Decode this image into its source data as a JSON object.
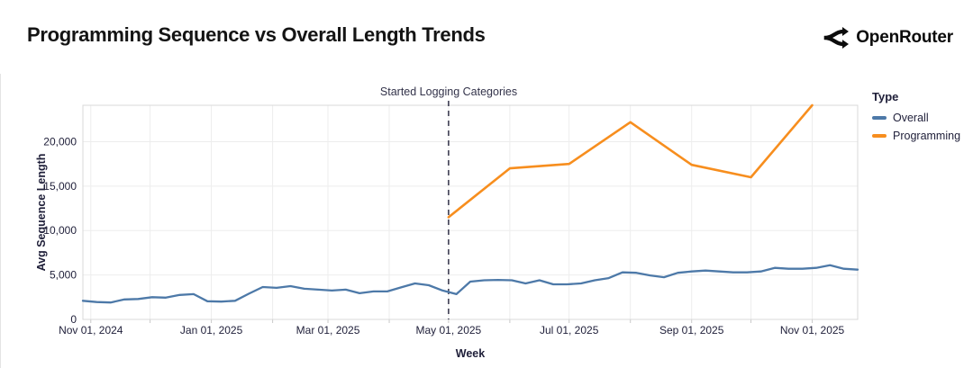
{
  "header": {
    "title": "Programming Sequence vs Overall Length Trends",
    "brand_name": "OpenRouter"
  },
  "colors": {
    "overall_line": "#4d79a8",
    "programming_line": "#f78e1e",
    "annotation_rule": "#3e3e52",
    "gridline": "#ededed",
    "plot_border": "#d9d9d9",
    "tick_text": "#22223c"
  },
  "chart_data": {
    "type": "line",
    "title": "Programming Sequence vs Overall Length Trends",
    "xlabel": "Week",
    "ylabel": "Avg Sequence Length",
    "grid": true,
    "time_range": [
      "2024-10-28",
      "2025-11-24"
    ],
    "ylim": [
      0,
      24100
    ],
    "x_axis": {
      "label": "Week",
      "tick_dates": [
        "2024-11-01",
        "2025-01-01",
        "2025-03-01",
        "2025-05-01",
        "2025-07-01",
        "2025-09-01",
        "2025-11-01"
      ],
      "tick_labels": [
        "Nov 01, 2024",
        "Jan 01, 2025",
        "Mar 01, 2025",
        "May 01, 2025",
        "Jul 01, 2025",
        "Sep 01, 2025",
        "Nov 01, 2025"
      ],
      "grid_interval": "1 month"
    },
    "y_axis": {
      "label": "Avg Sequence Length",
      "ticks": [
        0,
        5000,
        10000,
        15000,
        20000
      ],
      "tick_labels": [
        "0",
        "5,000",
        "10,000",
        "15,000",
        "20,000"
      ]
    },
    "annotation": {
      "text": "Started Logging Categories",
      "date": "2025-05-01",
      "style": "dashed-vertical-rule"
    },
    "legend": {
      "title": "Type",
      "position": "right",
      "entries": [
        {
          "name": "Overall",
          "color": "#4d79a8"
        },
        {
          "name": "Programming",
          "color": "#f78e1e"
        }
      ]
    },
    "series": [
      {
        "name": "Overall",
        "color": "#4d79a8",
        "cadence": "weekly",
        "start_date": "2024-10-28",
        "interval_days": 7,
        "values": [
          2100,
          1950,
          1900,
          2250,
          2300,
          2500,
          2450,
          2750,
          2850,
          2050,
          2000,
          2100,
          2900,
          3650,
          3550,
          3750,
          3450,
          3350,
          3250,
          3350,
          2950,
          3150,
          3150,
          3600,
          4050,
          3850,
          3250,
          2850,
          4250,
          4400,
          4450,
          4400,
          4050,
          4400,
          3950,
          3950,
          4050,
          4400,
          4650,
          5300,
          5250,
          4950,
          4750,
          5250,
          5400,
          5500,
          5400,
          5300,
          5300,
          5400,
          5800,
          5700,
          5700,
          5800,
          6100,
          5700,
          5600
        ]
      },
      {
        "name": "Programming",
        "color": "#f78e1e",
        "cadence": "monthly",
        "dates": [
          "2025-05-01",
          "2025-06-01",
          "2025-07-01",
          "2025-08-01",
          "2025-09-01",
          "2025-10-01",
          "2025-11-01"
        ],
        "values": [
          11500,
          17000,
          17500,
          22200,
          17400,
          16000,
          24100
        ]
      }
    ]
  }
}
